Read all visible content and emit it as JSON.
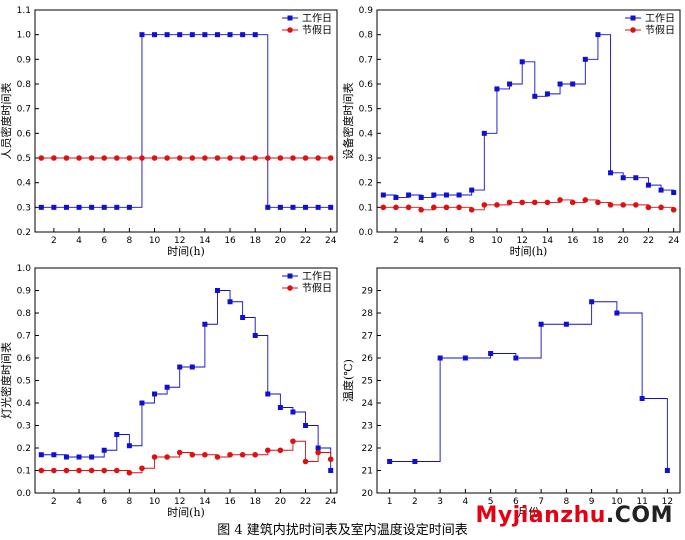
{
  "caption": "图 4  建筑内扰时间表及室内温度设定时间表",
  "watermark": {
    "part1": "Myjianzhu",
    "part2": ".COM"
  },
  "colors": {
    "workday": "#1010d0",
    "holiday": "#dd1111",
    "frame": "#000000"
  },
  "chart_data": [
    {
      "type": "line",
      "step": true,
      "xlabel": "时间(h)",
      "ylabel": "人员密度时间表",
      "xlim": [
        0.5,
        24.5
      ],
      "ylim": [
        0.2,
        1.1
      ],
      "xticks": [
        2,
        4,
        6,
        8,
        10,
        12,
        14,
        16,
        18,
        20,
        22,
        24
      ],
      "yticks": [
        0.2,
        0.3,
        0.4,
        0.5,
        0.6,
        0.7,
        0.8,
        0.9,
        1.0,
        1.1
      ],
      "ytick_labels": [
        "0.2",
        "0.3",
        "0.4",
        "0.5",
        "0.6",
        "0.7",
        "0.8",
        "0.9",
        "1.0",
        "1.1"
      ],
      "legend_position": "top-right",
      "x": [
        1,
        2,
        3,
        4,
        5,
        6,
        7,
        8,
        9,
        10,
        11,
        12,
        13,
        14,
        15,
        16,
        17,
        18,
        19,
        20,
        21,
        22,
        23,
        24
      ],
      "series": [
        {
          "name": "工作日",
          "marker": "square",
          "color": "#1010d0",
          "values": [
            0.3,
            0.3,
            0.3,
            0.3,
            0.3,
            0.3,
            0.3,
            0.3,
            1.0,
            1.0,
            1.0,
            1.0,
            1.0,
            1.0,
            1.0,
            1.0,
            1.0,
            1.0,
            0.3,
            0.3,
            0.3,
            0.3,
            0.3,
            0.3
          ]
        },
        {
          "name": "节假日",
          "marker": "circle",
          "color": "#dd1111",
          "values": [
            0.5,
            0.5,
            0.5,
            0.5,
            0.5,
            0.5,
            0.5,
            0.5,
            0.5,
            0.5,
            0.5,
            0.5,
            0.5,
            0.5,
            0.5,
            0.5,
            0.5,
            0.5,
            0.5,
            0.5,
            0.5,
            0.5,
            0.5,
            0.5
          ]
        }
      ]
    },
    {
      "type": "line",
      "step": true,
      "xlabel": "时间(h)",
      "ylabel": "设备密度时间表",
      "xlim": [
        0.5,
        24.5
      ],
      "ylim": [
        0.0,
        0.9
      ],
      "xticks": [
        2,
        4,
        6,
        8,
        10,
        12,
        14,
        16,
        18,
        20,
        22,
        24
      ],
      "yticks": [
        0.0,
        0.1,
        0.2,
        0.3,
        0.4,
        0.5,
        0.6,
        0.7,
        0.8,
        0.9
      ],
      "ytick_labels": [
        "0.0",
        "0.1",
        "0.2",
        "0.3",
        "0.4",
        "0.5",
        "0.6",
        "0.7",
        "0.8",
        "0.9"
      ],
      "legend_position": "top-right",
      "x": [
        1,
        2,
        3,
        4,
        5,
        6,
        7,
        8,
        9,
        10,
        11,
        12,
        13,
        14,
        15,
        16,
        17,
        18,
        19,
        20,
        21,
        22,
        23,
        24
      ],
      "series": [
        {
          "name": "工作日",
          "marker": "square",
          "color": "#1010d0",
          "values": [
            0.15,
            0.14,
            0.15,
            0.14,
            0.15,
            0.15,
            0.15,
            0.17,
            0.4,
            0.58,
            0.6,
            0.69,
            0.55,
            0.56,
            0.6,
            0.6,
            0.7,
            0.8,
            0.24,
            0.22,
            0.22,
            0.19,
            0.17,
            0.16
          ]
        },
        {
          "name": "节假日",
          "marker": "circle",
          "color": "#dd1111",
          "values": [
            0.1,
            0.1,
            0.1,
            0.09,
            0.1,
            0.1,
            0.1,
            0.09,
            0.11,
            0.11,
            0.12,
            0.12,
            0.12,
            0.12,
            0.13,
            0.12,
            0.13,
            0.12,
            0.11,
            0.11,
            0.11,
            0.1,
            0.1,
            0.09
          ]
        }
      ]
    },
    {
      "type": "line",
      "step": true,
      "xlabel": "时间(h)",
      "ylabel": "灯光密度时间表",
      "xlim": [
        0.5,
        24.5
      ],
      "ylim": [
        0.0,
        1.0
      ],
      "xticks": [
        2,
        4,
        6,
        8,
        10,
        12,
        14,
        16,
        18,
        20,
        22,
        24
      ],
      "yticks": [
        0.0,
        0.1,
        0.2,
        0.3,
        0.4,
        0.5,
        0.6,
        0.7,
        0.8,
        0.9,
        1.0
      ],
      "ytick_labels": [
        "0.0",
        "0.1",
        "0.2",
        "0.3",
        "0.4",
        "0.5",
        "0.6",
        "0.7",
        "0.8",
        "0.9",
        "1.0"
      ],
      "legend_position": "top-right",
      "x": [
        1,
        2,
        3,
        4,
        5,
        6,
        7,
        8,
        9,
        10,
        11,
        12,
        13,
        14,
        15,
        16,
        17,
        18,
        19,
        20,
        21,
        22,
        23,
        24
      ],
      "series": [
        {
          "name": "工作日",
          "marker": "square",
          "color": "#1010d0",
          "values": [
            0.17,
            0.17,
            0.16,
            0.16,
            0.16,
            0.19,
            0.26,
            0.21,
            0.4,
            0.44,
            0.47,
            0.56,
            0.56,
            0.75,
            0.9,
            0.85,
            0.78,
            0.7,
            0.44,
            0.38,
            0.36,
            0.3,
            0.2,
            0.1
          ]
        },
        {
          "name": "节假日",
          "marker": "circle",
          "color": "#dd1111",
          "values": [
            0.1,
            0.1,
            0.1,
            0.1,
            0.1,
            0.1,
            0.1,
            0.09,
            0.11,
            0.16,
            0.16,
            0.18,
            0.17,
            0.17,
            0.16,
            0.17,
            0.17,
            0.17,
            0.19,
            0.19,
            0.23,
            0.14,
            0.18,
            0.15
          ]
        }
      ]
    },
    {
      "type": "line",
      "step": true,
      "xlabel": "月份",
      "ylabel": "温度(℃)",
      "xlim": [
        0.5,
        12.5
      ],
      "ylim": [
        20,
        30
      ],
      "xticks": [
        1,
        2,
        3,
        4,
        5,
        6,
        7,
        8,
        9,
        10,
        11,
        12
      ],
      "yticks": [
        20,
        21,
        22,
        23,
        24,
        25,
        26,
        27,
        28,
        29
      ],
      "ytick_labels": [
        "20",
        "21",
        "22",
        "23",
        "24",
        "25",
        "26",
        "27",
        "28",
        "29"
      ],
      "x": [
        1,
        2,
        3,
        4,
        5,
        6,
        7,
        8,
        9,
        10,
        11,
        12
      ],
      "series": [
        {
          "marker": "square",
          "color": "#1010d0",
          "values": [
            21.4,
            21.4,
            26.0,
            26.0,
            26.2,
            26.0,
            27.5,
            27.5,
            28.5,
            28.0,
            24.2,
            21.0
          ]
        }
      ]
    }
  ]
}
